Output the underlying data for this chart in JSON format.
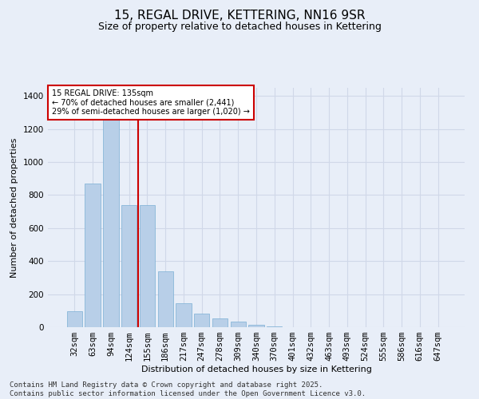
{
  "title1": "15, REGAL DRIVE, KETTERING, NN16 9SR",
  "title2": "Size of property relative to detached houses in Kettering",
  "xlabel": "Distribution of detached houses by size in Kettering",
  "ylabel": "Number of detached properties",
  "footnote": "Contains HM Land Registry data © Crown copyright and database right 2025.\nContains public sector information licensed under the Open Government Licence v3.0.",
  "categories": [
    "32sqm",
    "63sqm",
    "94sqm",
    "124sqm",
    "155sqm",
    "186sqm",
    "217sqm",
    "247sqm",
    "278sqm",
    "309sqm",
    "340sqm",
    "370sqm",
    "401sqm",
    "432sqm",
    "463sqm",
    "493sqm",
    "524sqm",
    "555sqm",
    "586sqm",
    "616sqm",
    "647sqm"
  ],
  "values": [
    95,
    870,
    1270,
    740,
    740,
    340,
    145,
    80,
    55,
    35,
    15,
    5,
    0,
    0,
    0,
    0,
    0,
    0,
    0,
    0,
    0
  ],
  "bar_color": "#b8cfe8",
  "bar_edge_color": "#7bafd4",
  "vline_color": "#cc0000",
  "vline_pos": 3.5,
  "annotation_text": "15 REGAL DRIVE: 135sqm\n← 70% of detached houses are smaller (2,441)\n29% of semi-detached houses are larger (1,020) →",
  "annotation_box_color": "#cc0000",
  "annotation_bg_color": "#ffffff",
  "ylim": [
    0,
    1450
  ],
  "yticks": [
    0,
    200,
    400,
    600,
    800,
    1000,
    1200,
    1400
  ],
  "grid_color": "#d0d8e8",
  "bg_color": "#e8eef8",
  "title1_fontsize": 11,
  "title2_fontsize": 9,
  "axis_label_fontsize": 8,
  "tick_fontsize": 7.5,
  "annotation_fontsize": 7,
  "footnote_fontsize": 6.5
}
